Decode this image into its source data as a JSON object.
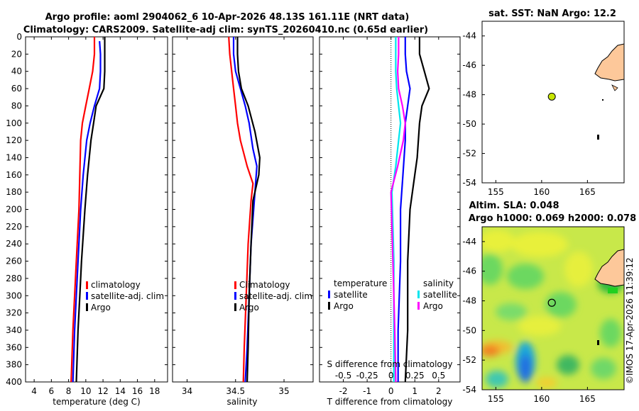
{
  "header": {
    "line1": "Argo profile: aoml 2904062_6 10-Apr-2026 48.13S 161.11E (NRT data)",
    "line2": "Climatology: CARS2009. Satellite-adj clim: synTS_20260410.nc (0.65d earlier)"
  },
  "credit": "©IMOS 17-Apr-2026 11:39:12",
  "colors": {
    "climatology": "#ff0000",
    "satellite": "#0000ff",
    "argo": "#000000",
    "salinity_sat": "#00e5ee",
    "salinity_argo": "#ff00ff",
    "land": "#fdc89a",
    "float_marker": "#c8e600"
  },
  "chart_data": [
    {
      "type": "line",
      "id": "temperature",
      "xlabel": "temperature (deg C)",
      "ylabel": "",
      "xlim": [
        3,
        19.5
      ],
      "ylim": [
        400,
        0
      ],
      "xticks": [
        "4",
        "6",
        "8",
        "10",
        "12",
        "14",
        "16",
        "18"
      ],
      "xtick_values": [
        4,
        6,
        8,
        10,
        12,
        14,
        16,
        18
      ],
      "yticks": [
        "0",
        "20",
        "40",
        "60",
        "80",
        "100",
        "120",
        "140",
        "160",
        "180",
        "200",
        "220",
        "240",
        "260",
        "280",
        "300",
        "320",
        "340",
        "360",
        "380",
        "400"
      ],
      "ytick_values": [
        0,
        20,
        40,
        60,
        80,
        100,
        120,
        140,
        160,
        180,
        200,
        220,
        240,
        260,
        280,
        300,
        320,
        340,
        360,
        380,
        400
      ],
      "legend": [
        "climatology",
        "satellite-adj. clim",
        "Argo"
      ],
      "series": [
        {
          "name": "climatology",
          "color": "#ff0000",
          "points": [
            [
              11.0,
              0
            ],
            [
              11.0,
              20
            ],
            [
              10.8,
              40
            ],
            [
              10.4,
              60
            ],
            [
              10.0,
              80
            ],
            [
              9.6,
              100
            ],
            [
              9.4,
              120
            ],
            [
              9.3,
              160
            ],
            [
              9.2,
              200
            ],
            [
              8.9,
              260
            ],
            [
              8.7,
              300
            ],
            [
              8.5,
              340
            ],
            [
              8.3,
              400
            ]
          ]
        },
        {
          "name": "satellite-adj. clim",
          "color": "#0000ff",
          "points": [
            [
              11.6,
              5
            ],
            [
              11.7,
              20
            ],
            [
              11.7,
              40
            ],
            [
              11.6,
              60
            ],
            [
              11.0,
              80
            ],
            [
              10.5,
              100
            ],
            [
              10.1,
              120
            ],
            [
              9.7,
              160
            ],
            [
              9.4,
              200
            ],
            [
              9.1,
              260
            ],
            [
              8.9,
              300
            ],
            [
              8.7,
              340
            ],
            [
              8.5,
              400
            ]
          ]
        },
        {
          "name": "Argo",
          "color": "#000000",
          "points": [
            [
              12.2,
              0
            ],
            [
              12.2,
              20
            ],
            [
              12.2,
              40
            ],
            [
              12.1,
              60
            ],
            [
              11.2,
              80
            ],
            [
              10.9,
              100
            ],
            [
              10.6,
              120
            ],
            [
              10.2,
              160
            ],
            [
              9.9,
              200
            ],
            [
              9.5,
              260
            ],
            [
              9.3,
              300
            ],
            [
              9.1,
              340
            ],
            [
              8.9,
              400
            ]
          ]
        }
      ]
    },
    {
      "type": "line",
      "id": "salinity",
      "xlabel": "salinity",
      "ylabel": "",
      "xlim": [
        33.85,
        35.3
      ],
      "ylim": [
        400,
        0
      ],
      "xticks": [
        "34",
        "34.5",
        "35"
      ],
      "xtick_values": [
        34,
        34.5,
        35
      ],
      "legend": [
        "Climatology",
        "satellite-adj. clim",
        "Argo"
      ],
      "series": [
        {
          "name": "Climatology",
          "color": "#ff0000",
          "points": [
            [
              34.43,
              0
            ],
            [
              34.44,
              20
            ],
            [
              34.46,
              40
            ],
            [
              34.48,
              60
            ],
            [
              34.5,
              80
            ],
            [
              34.52,
              100
            ],
            [
              34.55,
              120
            ],
            [
              34.62,
              150
            ],
            [
              34.68,
              170
            ],
            [
              34.66,
              190
            ],
            [
              34.63,
              240
            ],
            [
              34.61,
              300
            ],
            [
              34.59,
              360
            ],
            [
              34.58,
              400
            ]
          ]
        },
        {
          "name": "satellite-adj. clim",
          "color": "#0000ff",
          "points": [
            [
              34.48,
              0
            ],
            [
              34.48,
              20
            ],
            [
              34.5,
              40
            ],
            [
              34.55,
              60
            ],
            [
              34.6,
              80
            ],
            [
              34.64,
              100
            ],
            [
              34.68,
              130
            ],
            [
              34.72,
              150
            ],
            [
              34.7,
              180
            ],
            [
              34.66,
              240
            ],
            [
              34.64,
              300
            ],
            [
              34.62,
              360
            ],
            [
              34.6,
              400
            ]
          ]
        },
        {
          "name": "Argo",
          "color": "#000000",
          "points": [
            [
              34.52,
              0
            ],
            [
              34.52,
              20
            ],
            [
              34.53,
              40
            ],
            [
              34.56,
              60
            ],
            [
              34.63,
              80
            ],
            [
              34.7,
              110
            ],
            [
              34.75,
              140
            ],
            [
              34.74,
              160
            ],
            [
              34.68,
              190
            ],
            [
              34.66,
              240
            ],
            [
              34.64,
              300
            ],
            [
              34.63,
              360
            ],
            [
              34.62,
              400
            ]
          ]
        }
      ]
    },
    {
      "type": "line",
      "id": "differences",
      "xlabel": "T difference from climatology",
      "secondary_xlabel": "S difference from climatology",
      "xlim": [
        -3,
        2.9
      ],
      "ylim": [
        400,
        0
      ],
      "xticks": [
        "-2",
        "-1",
        "0",
        "1",
        "2"
      ],
      "xtick_values": [
        -2,
        -1,
        0,
        1,
        2
      ],
      "secondary_xticks": [
        "-0.5",
        "-0.25",
        "0",
        "0.25",
        "0.5"
      ],
      "secondary_xtick_values": [
        -0.5,
        -0.25,
        0,
        0.25,
        0.5
      ],
      "legend_temperature": [
        "temperature",
        "satellite",
        "Argo"
      ],
      "legend_salinity": [
        "salinity",
        "satellite",
        "Argo"
      ],
      "series": [
        {
          "name": "T satellite",
          "color": "#0000ff",
          "points": [
            [
              0.6,
              0
            ],
            [
              0.6,
              20
            ],
            [
              0.65,
              40
            ],
            [
              0.8,
              60
            ],
            [
              0.7,
              80
            ],
            [
              0.6,
              100
            ],
            [
              0.6,
              120
            ],
            [
              0.5,
              160
            ],
            [
              0.4,
              200
            ],
            [
              0.4,
              260
            ],
            [
              0.35,
              300
            ],
            [
              0.3,
              340
            ],
            [
              0.3,
              400
            ]
          ]
        },
        {
          "name": "T Argo",
          "color": "#000000",
          "points": [
            [
              1.2,
              0
            ],
            [
              1.2,
              20
            ],
            [
              1.4,
              40
            ],
            [
              1.6,
              60
            ],
            [
              1.3,
              80
            ],
            [
              1.2,
              100
            ],
            [
              1.1,
              140
            ],
            [
              1.0,
              160
            ],
            [
              0.8,
              200
            ],
            [
              0.7,
              260
            ],
            [
              0.7,
              300
            ],
            [
              0.7,
              340
            ],
            [
              0.6,
              400
            ]
          ]
        },
        {
          "name": "S satellite",
          "color": "#00e5ee",
          "points": [
            [
              0.05,
              0
            ],
            [
              0.05,
              20
            ],
            [
              0.05,
              40
            ],
            [
              0.06,
              60
            ],
            [
              0.08,
              80
            ],
            [
              0.1,
              100
            ],
            [
              0.08,
              120
            ],
            [
              0.05,
              150
            ],
            [
              0.01,
              180
            ],
            [
              0.02,
              220
            ],
            [
              0.03,
              260
            ],
            [
              0.03,
              300
            ],
            [
              0.03,
              340
            ],
            [
              0.03,
              400
            ]
          ]
        },
        {
          "name": "S Argo",
          "color": "#ff00ff",
          "points": [
            [
              0.08,
              0
            ],
            [
              0.08,
              20
            ],
            [
              0.07,
              40
            ],
            [
              0.08,
              60
            ],
            [
              0.12,
              80
            ],
            [
              0.15,
              100
            ],
            [
              0.13,
              120
            ],
            [
              0.07,
              150
            ],
            [
              0.0,
              180
            ],
            [
              0.01,
              220
            ],
            [
              0.02,
              260
            ],
            [
              0.03,
              300
            ],
            [
              0.04,
              340
            ],
            [
              0.05,
              400
            ]
          ]
        }
      ]
    },
    {
      "type": "map",
      "id": "sst-map",
      "title": "sat. SST: NaN Argo: 12.2",
      "xlim": [
        153.5,
        169
      ],
      "ylim": [
        -54,
        -43
      ],
      "xticks": [
        "155",
        "160",
        "165"
      ],
      "xtick_values": [
        155,
        160,
        165
      ],
      "yticks": [
        "-44",
        "-46",
        "-48",
        "-50",
        "-52",
        "-54"
      ],
      "ytick_values": [
        -44,
        -46,
        -48,
        -50,
        -52,
        -54
      ],
      "float_position": {
        "lon": 161.11,
        "lat": -48.13
      }
    },
    {
      "type": "heatmap",
      "id": "sla-map",
      "title_line1": "Altim. SLA: 0.048",
      "title_line2": "Argo h1000: 0.069 h2000: 0.078",
      "xlim": [
        153.5,
        169
      ],
      "ylim": [
        -54,
        -43
      ],
      "xticks": [
        "155",
        "160",
        "165"
      ],
      "xtick_values": [
        155,
        160,
        165
      ],
      "yticks": [
        "-44",
        "-46",
        "-48",
        "-50",
        "-52",
        "-54"
      ],
      "ytick_values": [
        -44,
        -46,
        -48,
        -50,
        -52,
        -54
      ],
      "float_position": {
        "lon": 161.11,
        "lat": -48.13
      }
    }
  ]
}
